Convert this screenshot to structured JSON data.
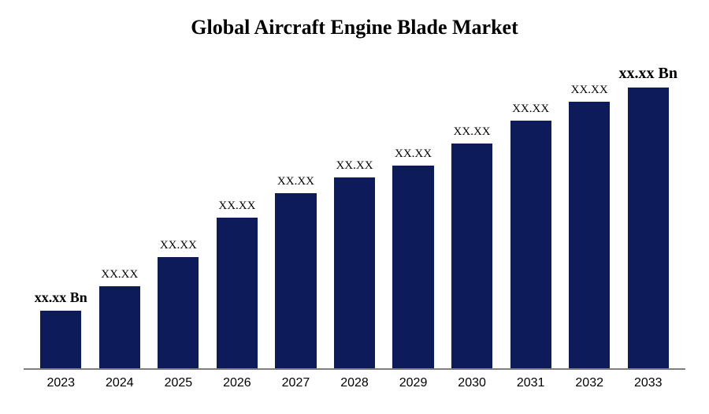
{
  "chart": {
    "type": "bar",
    "title": "Global  Aircraft Engine Blade Market",
    "title_fontsize": 26,
    "title_fontweight": "bold",
    "title_color": "#000000",
    "background_color": "#ffffff",
    "axis_line_color": "#7f7f7f",
    "categories": [
      "2023",
      "2024",
      "2025",
      "2026",
      "2027",
      "2028",
      "2029",
      "2030",
      "2031",
      "2032",
      "2033"
    ],
    "values": [
      72,
      102,
      138,
      188,
      218,
      238,
      252,
      280,
      308,
      332,
      350
    ],
    "ylim": [
      0,
      380
    ],
    "bar_color": "#0d1b5a",
    "bar_width": 0.7,
    "value_labels": [
      "xx.xx Bn",
      "XX.XX",
      "XX.XX",
      "XX.XX",
      "XX.XX",
      "XX.XX",
      "XX.XX",
      "XX.XX",
      "XX.XX",
      "XX.XX",
      "xx.xx Bn"
    ],
    "value_label_fontweight": [
      "bold",
      "normal",
      "normal",
      "normal",
      "normal",
      "normal",
      "normal",
      "normal",
      "normal",
      "normal",
      "bold"
    ],
    "value_label_fontsize": [
      18,
      15,
      15,
      15,
      15,
      15,
      15,
      15,
      15,
      15,
      20
    ],
    "value_label_color": "#000000",
    "xtick_fontsize": 16,
    "xtick_color": "#000000"
  }
}
